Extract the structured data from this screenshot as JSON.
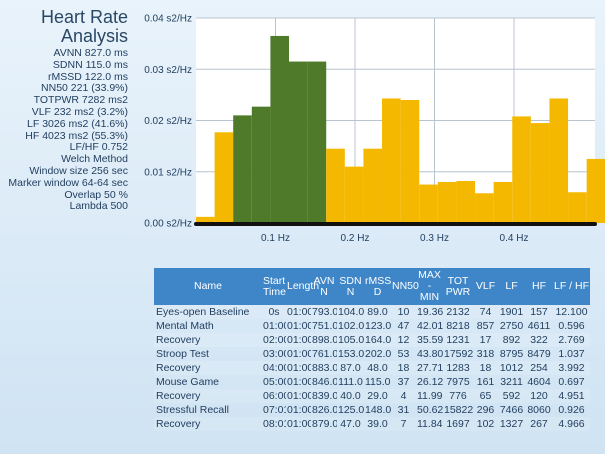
{
  "title": {
    "line1": "Heart Rate",
    "line2": "Analysis"
  },
  "metrics": [
    "AVNN 827.0 ms",
    "SDNN 115.0 ms",
    "rMSSD 122.0 ms",
    "NN50 221 (33.9%)",
    "TOTPWR 7282 ms2",
    "VLF 232 ms2 (3.2%)",
    "LF 3026 ms2 (41.6%)",
    "HF 4023 ms2 (55.3%)",
    "LF/HF 0.752",
    "Welch Method",
    "Window size 256 sec",
    "Marker window 64-64 sec",
    "Overlap 50 %",
    "Lambda 500"
  ],
  "colors": {
    "lf_bar": "#4e7a2a",
    "other_bar": "#f5b800",
    "header_bg": "#3f86c8",
    "axis": "#111111"
  },
  "chart_data": {
    "type": "bar",
    "ytick_labels": [
      "0.04 s2/Hz",
      "0.03 s2/Hz",
      "0.02 s2/Hz",
      "0.01 s2/Hz",
      "0.00 s2/Hz"
    ],
    "ytick_values": [
      0.04,
      0.03,
      0.02,
      0.01,
      0.0
    ],
    "ylim": [
      0,
      0.04
    ],
    "xtick_labels": [
      "0.1 Hz",
      "0.2 Hz",
      "0.3 Hz",
      "0.4 Hz"
    ],
    "xtick_values": [
      0.1,
      0.2,
      0.3,
      0.4
    ],
    "bar_width_hz": 0.0234,
    "x_start_hz": 0.0,
    "values": [
      0.0012,
      0.0177,
      0.021,
      0.0227,
      0.0365,
      0.0315,
      0.0315,
      0.0145,
      0.011,
      0.0145,
      0.0243,
      0.024,
      0.0075,
      0.008,
      0.0082,
      0.0058,
      0.008,
      0.0208,
      0.0195,
      0.0243,
      0.006,
      0.0125
    ],
    "highlighted_range": [
      2,
      6
    ],
    "grid": true,
    "legend": "none"
  },
  "table": {
    "headers": [
      "Name",
      "Start Time",
      "Length",
      "AVN N",
      "SDN N",
      "rMSS D",
      "NN50",
      "MAX - MIN",
      "TOT PWR",
      "VLF",
      "LF",
      "HF",
      "LF / HF"
    ],
    "rows": [
      [
        "Eyes-open Baseline",
        "0s",
        "01:00",
        "793.0",
        "104.0",
        "89.0",
        "10",
        "19.36",
        "2132",
        "74",
        "1901",
        "157",
        "12.100"
      ],
      [
        "Mental Math",
        "01:00",
        "01:00",
        "751.0",
        "102.0",
        "123.0",
        "47",
        "42.01",
        "8218",
        "857",
        "2750",
        "4611",
        "0.596"
      ],
      [
        "Recovery",
        "02:00",
        "01:00",
        "898.0",
        "105.0",
        "164.0",
        "12",
        "35.59",
        "1231",
        "17",
        "892",
        "322",
        "2.769"
      ],
      [
        "Stroop Test",
        "03:00",
        "01:00",
        "761.0",
        "153.0",
        "202.0",
        "53",
        "43.80",
        "17592",
        "318",
        "8795",
        "8479",
        "1.037"
      ],
      [
        "Recovery",
        "04:00",
        "01:00",
        "883.0",
        "87.0",
        "48.0",
        "18",
        "27.71",
        "1283",
        "18",
        "1012",
        "254",
        "3.992"
      ],
      [
        "Mouse Game",
        "05:00",
        "01:00",
        "846.0",
        "111.0",
        "115.0",
        "37",
        "26.12",
        "7975",
        "161",
        "3211",
        "4604",
        "0.697"
      ],
      [
        "Recovery",
        "06:00",
        "01:00",
        "839.0",
        "40.0",
        "29.0",
        "4",
        "11.99",
        "776",
        "65",
        "592",
        "120",
        "4.951"
      ],
      [
        "Stressful Recall",
        "07:01",
        "01:00",
        "826.0",
        "125.0",
        "148.0",
        "31",
        "50.62",
        "15822",
        "296",
        "7466",
        "8060",
        "0.926"
      ],
      [
        "Recovery",
        "08:01",
        "01:00",
        "879.0",
        "47.0",
        "39.0",
        "7",
        "11.84",
        "1697",
        "102",
        "1327",
        "267",
        "4.966"
      ]
    ]
  }
}
